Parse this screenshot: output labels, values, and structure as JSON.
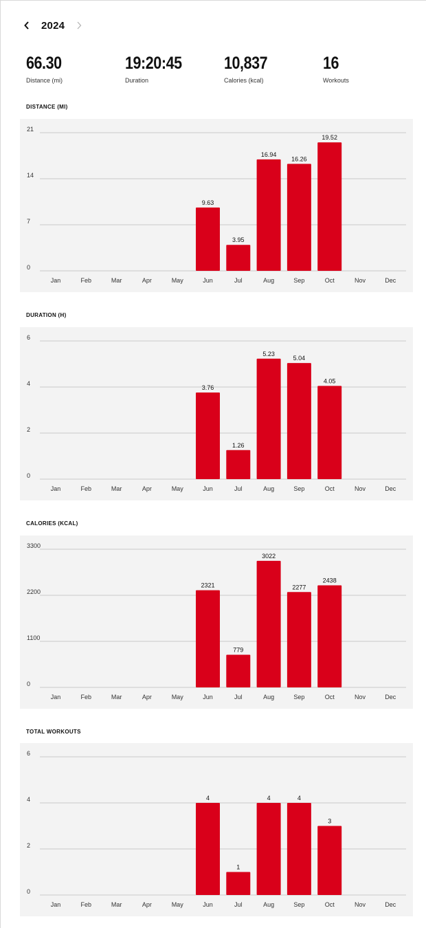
{
  "header": {
    "year": "2024",
    "prev_icon": "chevron-left-icon",
    "next_icon": "chevron-right-icon"
  },
  "summary": [
    {
      "value": "66.30",
      "label": "Distance (mi)"
    },
    {
      "value": "19:20:45",
      "label": "Duration"
    },
    {
      "value": "10,837",
      "label": "Calories (kcal)"
    },
    {
      "value": "16",
      "label": "Workouts"
    }
  ],
  "colors": {
    "bar": "#d9001a",
    "panel": "#f3f3f3",
    "grid": "#c9c9c9"
  },
  "chart_data": [
    {
      "type": "bar",
      "title": "DISTANCE (MI)",
      "categories": [
        "Jan",
        "Feb",
        "Mar",
        "Apr",
        "May",
        "Jun",
        "Jul",
        "Aug",
        "Sep",
        "Oct",
        "Nov",
        "Dec"
      ],
      "values": [
        null,
        null,
        null,
        null,
        null,
        9.63,
        3.95,
        16.94,
        16.26,
        19.52,
        null,
        null
      ],
      "value_labels": [
        "",
        "",
        "",
        "",
        "",
        "9.63",
        "3.95",
        "16.94",
        "16.26",
        "19.52",
        "",
        ""
      ],
      "yticks": [
        "0",
        "7",
        "14",
        "21"
      ],
      "ylim": [
        0,
        21
      ],
      "grid": true
    },
    {
      "type": "bar",
      "title": "DURATION (H)",
      "categories": [
        "Jan",
        "Feb",
        "Mar",
        "Apr",
        "May",
        "Jun",
        "Jul",
        "Aug",
        "Sep",
        "Oct",
        "Nov",
        "Dec"
      ],
      "values": [
        null,
        null,
        null,
        null,
        null,
        3.76,
        1.26,
        5.23,
        5.04,
        4.05,
        null,
        null
      ],
      "value_labels": [
        "",
        "",
        "",
        "",
        "",
        "3.76",
        "1.26",
        "5.23",
        "5.04",
        "4.05",
        "",
        ""
      ],
      "yticks": [
        "0",
        "2",
        "4",
        "6"
      ],
      "ylim": [
        0,
        6
      ],
      "grid": true
    },
    {
      "type": "bar",
      "title": "CALORIES (KCAL)",
      "categories": [
        "Jan",
        "Feb",
        "Mar",
        "Apr",
        "May",
        "Jun",
        "Jul",
        "Aug",
        "Sep",
        "Oct",
        "Nov",
        "Dec"
      ],
      "values": [
        null,
        null,
        null,
        null,
        null,
        2321,
        779,
        3022,
        2277,
        2438,
        null,
        null
      ],
      "value_labels": [
        "",
        "",
        "",
        "",
        "",
        "2321",
        "779",
        "3022",
        "2277",
        "2438",
        "",
        ""
      ],
      "yticks": [
        "0",
        "1100",
        "2200",
        "3300"
      ],
      "ylim": [
        0,
        3300
      ],
      "grid": true
    },
    {
      "type": "bar",
      "title": "TOTAL WORKOUTS",
      "categories": [
        "Jan",
        "Feb",
        "Mar",
        "Apr",
        "May",
        "Jun",
        "Jul",
        "Aug",
        "Sep",
        "Oct",
        "Nov",
        "Dec"
      ],
      "values": [
        null,
        null,
        null,
        null,
        null,
        4,
        1,
        4,
        4,
        3,
        null,
        null
      ],
      "value_labels": [
        "",
        "",
        "",
        "",
        "",
        "4",
        "1",
        "4",
        "4",
        "3",
        "",
        ""
      ],
      "yticks": [
        "0",
        "2",
        "4",
        "6"
      ],
      "ylim": [
        0,
        6
      ],
      "grid": true
    }
  ]
}
